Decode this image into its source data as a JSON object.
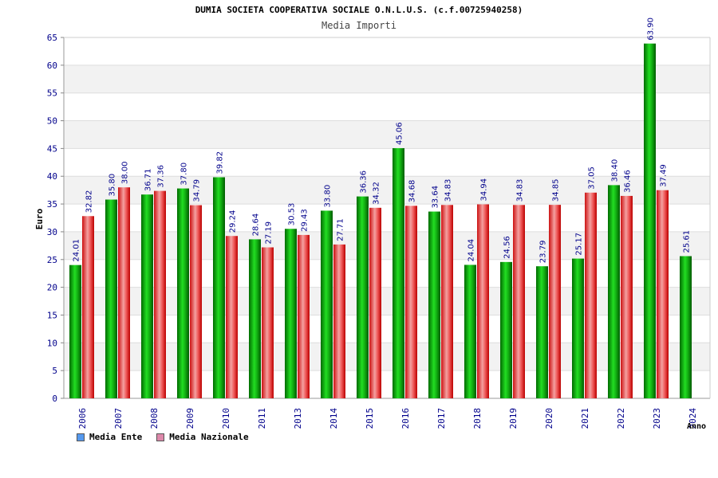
{
  "chart_data": {
    "type": "bar",
    "title": "DUMIA SOCIETA COOPERATIVA SOCIALE O.N.L.U.S. (c.f.00725940258)",
    "subtitle": "Media Importi",
    "ylabel": "Euro",
    "xlabel": "Anno",
    "ylim": [
      0,
      65
    ],
    "yticks": [
      0,
      5,
      10,
      15,
      20,
      25,
      30,
      35,
      40,
      45,
      50,
      55,
      60,
      65
    ],
    "grid": true,
    "legend_position": "bottom-left",
    "categories": [
      "2006",
      "2007",
      "2008",
      "2009",
      "2010",
      "2011",
      "2013",
      "2014",
      "2015",
      "2016",
      "2017",
      "2018",
      "2019",
      "2020",
      "2021",
      "2022",
      "2023",
      "2024"
    ],
    "series": [
      {
        "name": "Media Ente",
        "color": "#22c322",
        "legend_color": "#5599ee",
        "values": [
          24.01,
          35.8,
          36.71,
          37.8,
          39.82,
          28.64,
          30.53,
          33.8,
          36.36,
          45.06,
          33.64,
          24.04,
          24.56,
          23.79,
          25.17,
          38.4,
          63.9,
          25.61
        ],
        "labels": [
          "24.01",
          "35.80",
          "36.71",
          "37.80",
          "39.82",
          "28.64",
          "30.53",
          "33.80",
          "36.36",
          "45.06",
          "33.64",
          "24.04",
          "24.56",
          "23.79",
          "25.17",
          "38.40",
          "63.90",
          "25.61"
        ]
      },
      {
        "name": "Media Nazionale",
        "color": "#ee4444",
        "legend_color": "#dd88aa",
        "values": [
          32.82,
          38.0,
          37.36,
          34.79,
          29.24,
          27.19,
          29.43,
          27.71,
          34.32,
          34.68,
          34.83,
          34.94,
          34.83,
          34.85,
          37.05,
          36.46,
          37.49,
          null
        ],
        "labels": [
          "32.82",
          "38.00",
          "37.36",
          "34.79",
          "29.24",
          "27.19",
          "29.43",
          "27.71",
          "34.32",
          "34.68",
          "34.83",
          "34.94",
          "34.83",
          "34.85",
          "37.05",
          "36.46",
          "37.49",
          ""
        ]
      }
    ]
  }
}
